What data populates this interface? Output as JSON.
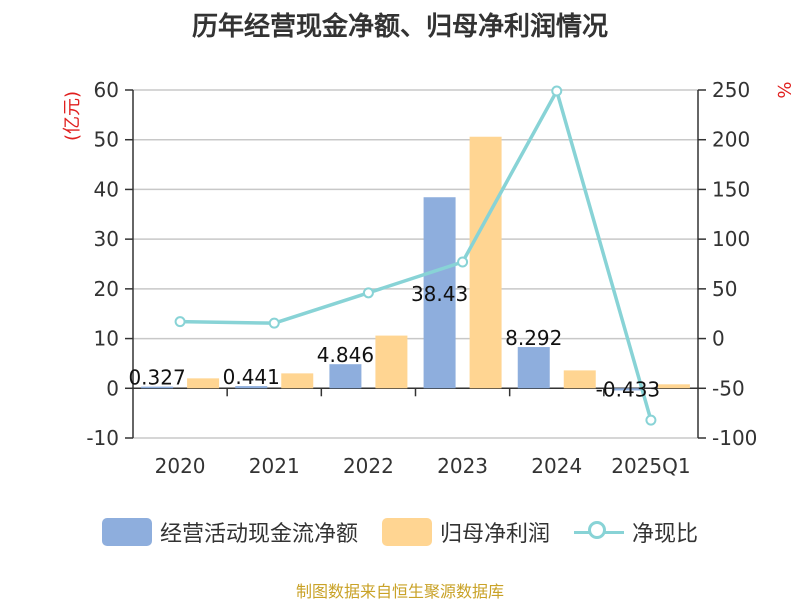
{
  "chart_data": {
    "type": "bar",
    "title": "历年经营现金净额、归母净利润情况",
    "categories": [
      "2020",
      "2021",
      "2022",
      "2023",
      "2024",
      "2025Q1"
    ],
    "series": [
      {
        "name": "经营活动现金流净额",
        "type": "bar",
        "axis": "left",
        "color": "#8eaedd",
        "values": [
          0.327,
          0.441,
          4.846,
          38.43,
          8.292,
          -0.433
        ],
        "labels": [
          "0.327",
          "0.441",
          "4.846",
          "38.43",
          "8.292",
          "-0.433"
        ]
      },
      {
        "name": "归母净利润",
        "type": "bar",
        "axis": "left",
        "color": "#ffd592",
        "values": [
          2.0,
          3.0,
          10.6,
          50.6,
          3.6,
          0.8
        ]
      },
      {
        "name": "净现比",
        "type": "line",
        "axis": "right",
        "color": "#88d3d6",
        "values": [
          17,
          15.5,
          46,
          77,
          249,
          -82
        ]
      }
    ],
    "left_axis": {
      "unit": "(亿元)",
      "min": -10,
      "max": 60,
      "step": 10,
      "ticks": [
        "-10",
        "0",
        "10",
        "20",
        "30",
        "40",
        "50",
        "60"
      ]
    },
    "right_axis": {
      "unit": "%",
      "min": -100,
      "max": 250,
      "step": 50,
      "ticks": [
        "-100",
        "-50",
        "0",
        "50",
        "100",
        "150",
        "200",
        "250"
      ]
    },
    "grid": true,
    "legend_position": "bottom"
  },
  "legend": {
    "items": [
      {
        "label": "经营活动现金流净额",
        "color": "#8eaedd"
      },
      {
        "label": "归母净利润",
        "color": "#ffd592"
      },
      {
        "label": "净现比",
        "color": "#88d3d6"
      }
    ]
  },
  "footer": {
    "source": "制图数据来自恒生聚源数据库"
  }
}
